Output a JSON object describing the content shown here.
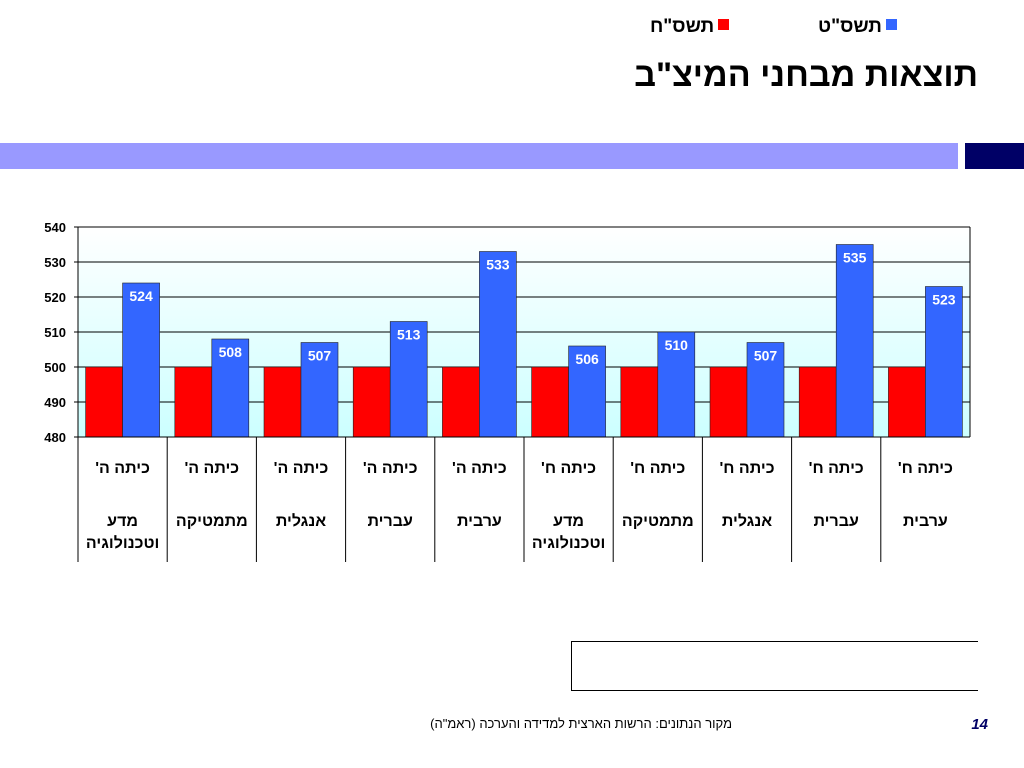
{
  "slide": {
    "title": "תוצאות מבחני המיצ\"ב",
    "source": "מקור הנתונים:  הרשות הארצית למדידה והערכה (ראמ\"ה)",
    "page_number": "14"
  },
  "colors": {
    "series_0": "#ff0000",
    "series_1": "#3366ff",
    "header_band": "#9999ff",
    "header_band_dark": "#000066",
    "plot_gradient_top": "#ffffff",
    "plot_gradient_bottom": "#ccffff"
  },
  "chart_data": {
    "type": "bar",
    "ylim": [
      480,
      540
    ],
    "yticks": [
      480,
      490,
      500,
      510,
      520,
      530,
      540
    ],
    "grid": true,
    "legend_position": "bottom-right",
    "categories": [
      {
        "grade": "כיתה ה'",
        "subject": [
          "מדע",
          "וטכנולוגיה"
        ]
      },
      {
        "grade": "כיתה ה'",
        "subject": [
          "מתמטיקה"
        ]
      },
      {
        "grade": "כיתה ה'",
        "subject": [
          "אנגלית"
        ]
      },
      {
        "grade": "כיתה ה'",
        "subject": [
          "עברית"
        ]
      },
      {
        "grade": "כיתה ה'",
        "subject": [
          "ערבית"
        ]
      },
      {
        "grade": "כיתה ח'",
        "subject": [
          "מדע",
          "וטכנולוגיה"
        ]
      },
      {
        "grade": "כיתה ח'",
        "subject": [
          "מתמטיקה"
        ]
      },
      {
        "grade": "כיתה ח'",
        "subject": [
          "אנגלית"
        ]
      },
      {
        "grade": "כיתה ח'",
        "subject": [
          "עברית"
        ]
      },
      {
        "grade": "כיתה ח'",
        "subject": [
          "ערבית"
        ]
      }
    ],
    "series": [
      {
        "name": "תשס\"ח",
        "values": [
          500,
          500,
          500,
          500,
          500,
          500,
          500,
          500,
          500,
          500
        ],
        "labeled": false
      },
      {
        "name": "תשס\"ט",
        "values": [
          524,
          508,
          507,
          513,
          533,
          506,
          510,
          507,
          535,
          523
        ],
        "labeled": true
      }
    ]
  }
}
